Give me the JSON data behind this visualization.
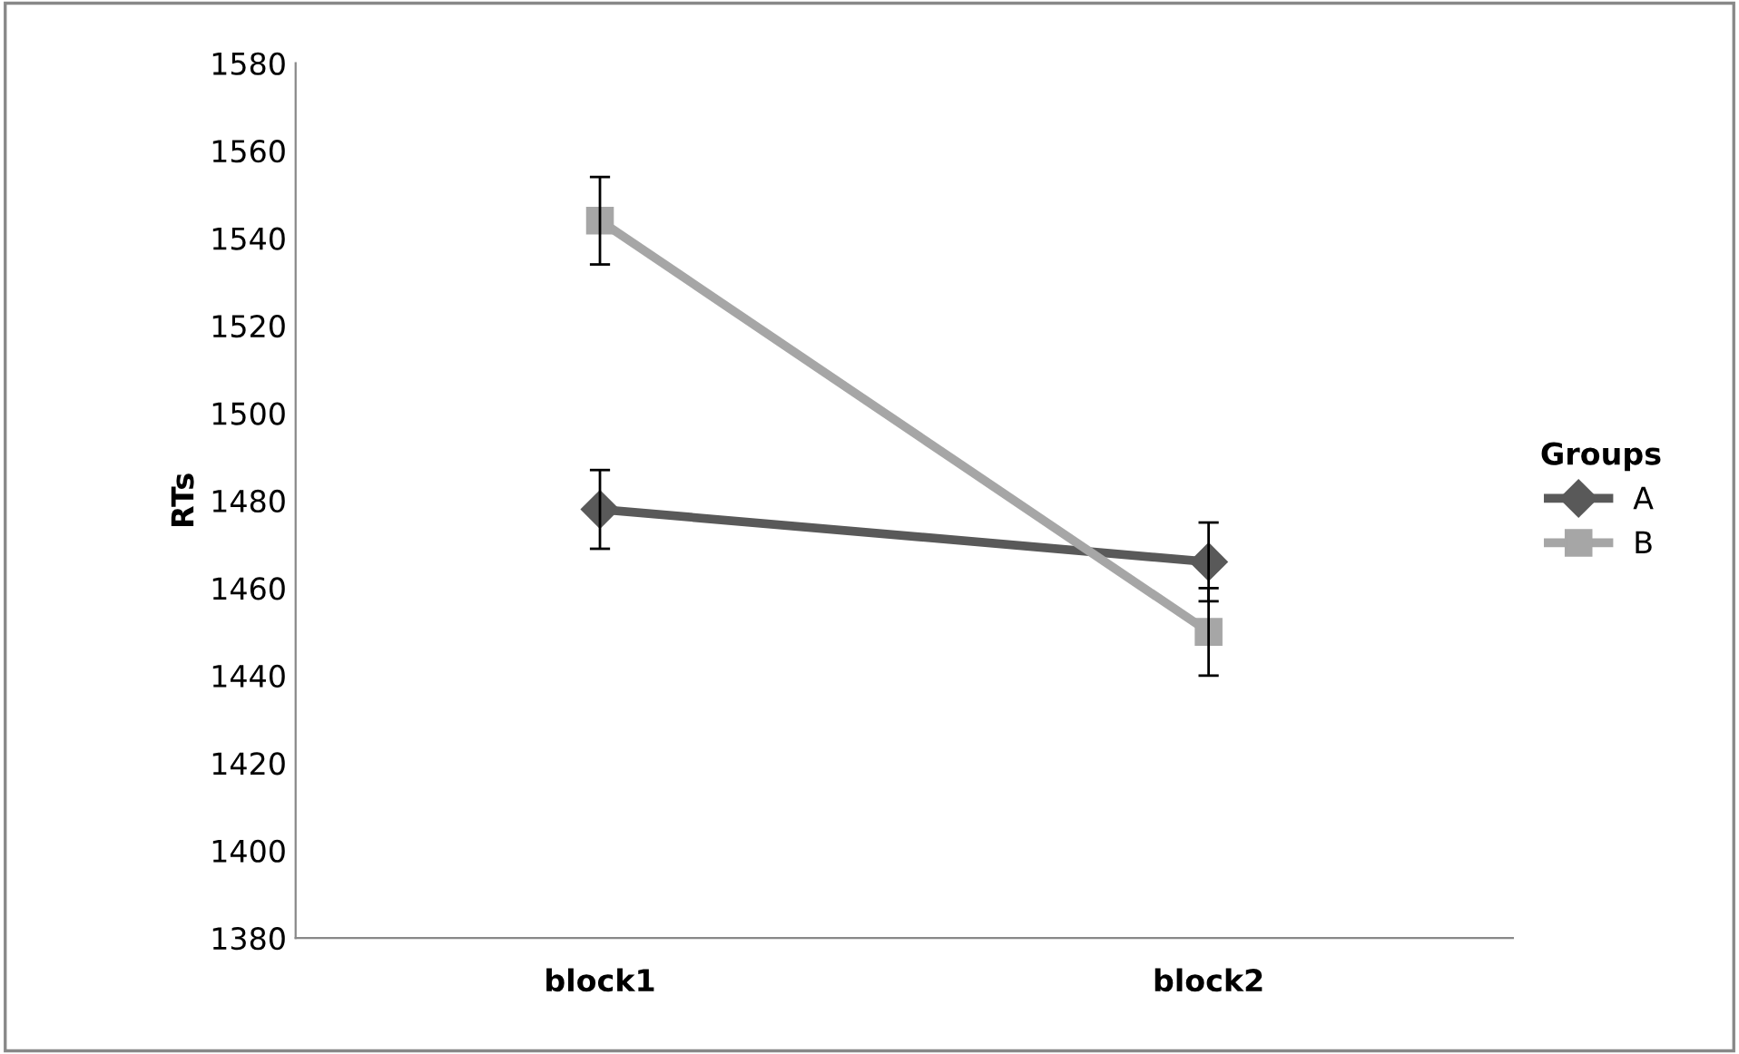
{
  "chart_data": {
    "type": "line",
    "ylabel": "RTs",
    "legend_title": "Groups",
    "legend": "right",
    "grid": false,
    "categories": [
      "block1",
      "block2"
    ],
    "ylim": [
      1380,
      1580
    ],
    "yticks": [
      1380,
      1400,
      1420,
      1440,
      1460,
      1480,
      1500,
      1520,
      1540,
      1560,
      1580
    ],
    "series": [
      {
        "name": "A",
        "color": "#595959",
        "marker": "diamond",
        "values": [
          1478,
          1466
        ],
        "errors": [
          9,
          9
        ]
      },
      {
        "name": "B",
        "color": "#a6a6a6",
        "marker": "square",
        "values": [
          1544,
          1450
        ],
        "errors": [
          10,
          10
        ]
      }
    ]
  }
}
